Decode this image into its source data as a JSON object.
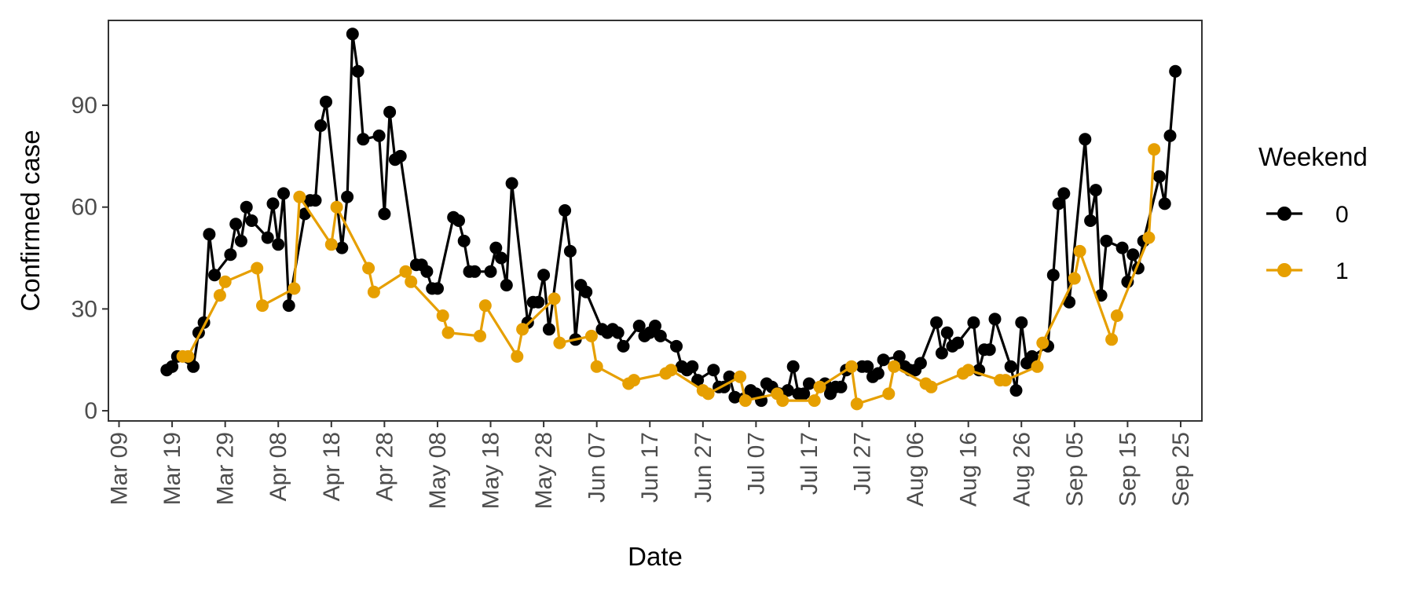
{
  "chart_data": {
    "type": "line",
    "title": "",
    "xlabel": "Date",
    "ylabel": "Confirmed case",
    "x_axis": {
      "type": "date",
      "range": [
        "2020-03-07",
        "2020-09-29"
      ],
      "ticks": [
        "2020-03-09",
        "2020-03-19",
        "2020-03-29",
        "2020-04-08",
        "2020-04-18",
        "2020-04-28",
        "2020-05-08",
        "2020-05-18",
        "2020-05-28",
        "2020-06-07",
        "2020-06-17",
        "2020-06-27",
        "2020-07-07",
        "2020-07-17",
        "2020-07-27",
        "2020-08-06",
        "2020-08-16",
        "2020-08-26",
        "2020-09-05",
        "2020-09-15",
        "2020-09-25"
      ],
      "tick_labels": [
        "Mar 09",
        "Mar 19",
        "Mar 29",
        "Apr 08",
        "Apr 18",
        "Apr 28",
        "May 08",
        "May 18",
        "May 28",
        "Jun 07",
        "Jun 17",
        "Jun 27",
        "Jul 07",
        "Jul 17",
        "Jul 27",
        "Aug 06",
        "Aug 16",
        "Aug 26",
        "Sep 05",
        "Sep 15",
        "Sep 25"
      ],
      "tick_label_rotation": -90
    },
    "y_axis": {
      "range": [
        -3,
        115
      ],
      "ticks": [
        0,
        30,
        60,
        90
      ],
      "tick_labels": [
        "0",
        "30",
        "60",
        "90"
      ]
    },
    "grid": false,
    "legend": {
      "title": "Weekend",
      "placement": "right",
      "entries": [
        "0",
        "1"
      ]
    },
    "series": [
      {
        "name": "0",
        "color": "#000000",
        "points": [
          [
            "2020-03-18",
            12
          ],
          [
            "2020-03-19",
            13
          ],
          [
            "2020-03-20",
            16
          ],
          [
            "2020-03-23",
            13
          ],
          [
            "2020-03-24",
            23
          ],
          [
            "2020-03-25",
            26
          ],
          [
            "2020-03-26",
            52
          ],
          [
            "2020-03-27",
            40
          ],
          [
            "2020-03-30",
            46
          ],
          [
            "2020-03-31",
            55
          ],
          [
            "2020-04-01",
            50
          ],
          [
            "2020-04-02",
            60
          ],
          [
            "2020-04-03",
            56
          ],
          [
            "2020-04-06",
            51
          ],
          [
            "2020-04-07",
            61
          ],
          [
            "2020-04-08",
            49
          ],
          [
            "2020-04-09",
            64
          ],
          [
            "2020-04-10",
            31
          ],
          [
            "2020-04-13",
            58
          ],
          [
            "2020-04-14",
            62
          ],
          [
            "2020-04-15",
            62
          ],
          [
            "2020-04-16",
            84
          ],
          [
            "2020-04-17",
            91
          ],
          [
            "2020-04-20",
            48
          ],
          [
            "2020-04-21",
            63
          ],
          [
            "2020-04-22",
            111
          ],
          [
            "2020-04-23",
            100
          ],
          [
            "2020-04-24",
            80
          ],
          [
            "2020-04-27",
            81
          ],
          [
            "2020-04-28",
            58
          ],
          [
            "2020-04-29",
            88
          ],
          [
            "2020-04-30",
            74
          ],
          [
            "2020-05-01",
            75
          ],
          [
            "2020-05-04",
            43
          ],
          [
            "2020-05-05",
            43
          ],
          [
            "2020-05-06",
            41
          ],
          [
            "2020-05-07",
            36
          ],
          [
            "2020-05-08",
            36
          ],
          [
            "2020-05-11",
            57
          ],
          [
            "2020-05-12",
            56
          ],
          [
            "2020-05-13",
            50
          ],
          [
            "2020-05-14",
            41
          ],
          [
            "2020-05-15",
            41
          ],
          [
            "2020-05-18",
            41
          ],
          [
            "2020-05-19",
            48
          ],
          [
            "2020-05-20",
            45
          ],
          [
            "2020-05-21",
            37
          ],
          [
            "2020-05-22",
            67
          ],
          [
            "2020-05-25",
            26
          ],
          [
            "2020-05-26",
            32
          ],
          [
            "2020-05-27",
            32
          ],
          [
            "2020-05-28",
            40
          ],
          [
            "2020-05-29",
            24
          ],
          [
            "2020-06-01",
            59
          ],
          [
            "2020-06-02",
            47
          ],
          [
            "2020-06-03",
            21
          ],
          [
            "2020-06-04",
            37
          ],
          [
            "2020-06-05",
            35
          ],
          [
            "2020-06-08",
            24
          ],
          [
            "2020-06-09",
            23
          ],
          [
            "2020-06-10",
            24
          ],
          [
            "2020-06-11",
            23
          ],
          [
            "2020-06-12",
            19
          ],
          [
            "2020-06-15",
            25
          ],
          [
            "2020-06-16",
            22
          ],
          [
            "2020-06-17",
            23
          ],
          [
            "2020-06-18",
            25
          ],
          [
            "2020-06-19",
            22
          ],
          [
            "2020-06-22",
            19
          ],
          [
            "2020-06-23",
            13
          ],
          [
            "2020-06-24",
            12
          ],
          [
            "2020-06-25",
            13
          ],
          [
            "2020-06-26",
            9
          ],
          [
            "2020-06-29",
            12
          ],
          [
            "2020-06-30",
            7
          ],
          [
            "2020-07-01",
            7
          ],
          [
            "2020-07-02",
            10
          ],
          [
            "2020-07-03",
            4
          ],
          [
            "2020-07-06",
            6
          ],
          [
            "2020-07-07",
            5
          ],
          [
            "2020-07-08",
            3
          ],
          [
            "2020-07-09",
            8
          ],
          [
            "2020-07-10",
            7
          ],
          [
            "2020-07-13",
            6
          ],
          [
            "2020-07-14",
            13
          ],
          [
            "2020-07-15",
            5
          ],
          [
            "2020-07-16",
            5
          ],
          [
            "2020-07-17",
            8
          ],
          [
            "2020-07-20",
            8
          ],
          [
            "2020-07-21",
            5
          ],
          [
            "2020-07-22",
            7
          ],
          [
            "2020-07-23",
            7
          ],
          [
            "2020-07-24",
            12
          ],
          [
            "2020-07-27",
            13
          ],
          [
            "2020-07-28",
            13
          ],
          [
            "2020-07-29",
            10
          ],
          [
            "2020-07-30",
            11
          ],
          [
            "2020-07-31",
            15
          ],
          [
            "2020-08-03",
            16
          ],
          [
            "2020-08-04",
            13
          ],
          [
            "2020-08-05",
            12
          ],
          [
            "2020-08-06",
            12
          ],
          [
            "2020-08-07",
            14
          ],
          [
            "2020-08-10",
            26
          ],
          [
            "2020-08-11",
            17
          ],
          [
            "2020-08-12",
            23
          ],
          [
            "2020-08-13",
            19
          ],
          [
            "2020-08-14",
            20
          ],
          [
            "2020-08-17",
            26
          ],
          [
            "2020-08-18",
            12
          ],
          [
            "2020-08-19",
            18
          ],
          [
            "2020-08-20",
            18
          ],
          [
            "2020-08-21",
            27
          ],
          [
            "2020-08-24",
            13
          ],
          [
            "2020-08-25",
            6
          ],
          [
            "2020-08-26",
            26
          ],
          [
            "2020-08-27",
            14
          ],
          [
            "2020-08-28",
            16
          ],
          [
            "2020-08-31",
            19
          ],
          [
            "2020-09-01",
            40
          ],
          [
            "2020-09-02",
            61
          ],
          [
            "2020-09-03",
            64
          ],
          [
            "2020-09-04",
            32
          ],
          [
            "2020-09-07",
            80
          ],
          [
            "2020-09-08",
            56
          ],
          [
            "2020-09-09",
            65
          ],
          [
            "2020-09-10",
            34
          ],
          [
            "2020-09-11",
            50
          ],
          [
            "2020-09-14",
            48
          ],
          [
            "2020-09-15",
            38
          ],
          [
            "2020-09-16",
            46
          ],
          [
            "2020-09-17",
            42
          ],
          [
            "2020-09-18",
            50
          ],
          [
            "2020-09-21",
            69
          ],
          [
            "2020-09-22",
            61
          ],
          [
            "2020-09-23",
            81
          ],
          [
            "2020-09-24",
            100
          ]
        ]
      },
      {
        "name": "1",
        "color": "#E69F00",
        "points": [
          [
            "2020-03-21",
            16
          ],
          [
            "2020-03-22",
            16
          ],
          [
            "2020-03-28",
            34
          ],
          [
            "2020-03-29",
            38
          ],
          [
            "2020-04-04",
            42
          ],
          [
            "2020-04-05",
            31
          ],
          [
            "2020-04-11",
            36
          ],
          [
            "2020-04-12",
            63
          ],
          [
            "2020-04-18",
            49
          ],
          [
            "2020-04-19",
            60
          ],
          [
            "2020-04-25",
            42
          ],
          [
            "2020-04-26",
            35
          ],
          [
            "2020-05-02",
            41
          ],
          [
            "2020-05-03",
            38
          ],
          [
            "2020-05-09",
            28
          ],
          [
            "2020-05-10",
            23
          ],
          [
            "2020-05-16",
            22
          ],
          [
            "2020-05-17",
            31
          ],
          [
            "2020-05-23",
            16
          ],
          [
            "2020-05-24",
            24
          ],
          [
            "2020-05-30",
            33
          ],
          [
            "2020-05-31",
            20
          ],
          [
            "2020-06-06",
            22
          ],
          [
            "2020-06-07",
            13
          ],
          [
            "2020-06-13",
            8
          ],
          [
            "2020-06-14",
            9
          ],
          [
            "2020-06-20",
            11
          ],
          [
            "2020-06-21",
            12
          ],
          [
            "2020-06-27",
            6
          ],
          [
            "2020-06-28",
            5
          ],
          [
            "2020-07-04",
            10
          ],
          [
            "2020-07-05",
            3
          ],
          [
            "2020-07-11",
            5
          ],
          [
            "2020-07-12",
            3
          ],
          [
            "2020-07-18",
            3
          ],
          [
            "2020-07-19",
            7
          ],
          [
            "2020-07-25",
            13
          ],
          [
            "2020-07-26",
            2
          ],
          [
            "2020-08-01",
            5
          ],
          [
            "2020-08-02",
            13
          ],
          [
            "2020-08-08",
            8
          ],
          [
            "2020-08-09",
            7
          ],
          [
            "2020-08-15",
            11
          ],
          [
            "2020-08-16",
            12
          ],
          [
            "2020-08-22",
            9
          ],
          [
            "2020-08-23",
            9
          ],
          [
            "2020-08-29",
            13
          ],
          [
            "2020-08-30",
            20
          ],
          [
            "2020-09-05",
            39
          ],
          [
            "2020-09-06",
            47
          ],
          [
            "2020-09-12",
            21
          ],
          [
            "2020-09-13",
            28
          ],
          [
            "2020-09-19",
            51
          ],
          [
            "2020-09-20",
            77
          ]
        ]
      }
    ]
  }
}
